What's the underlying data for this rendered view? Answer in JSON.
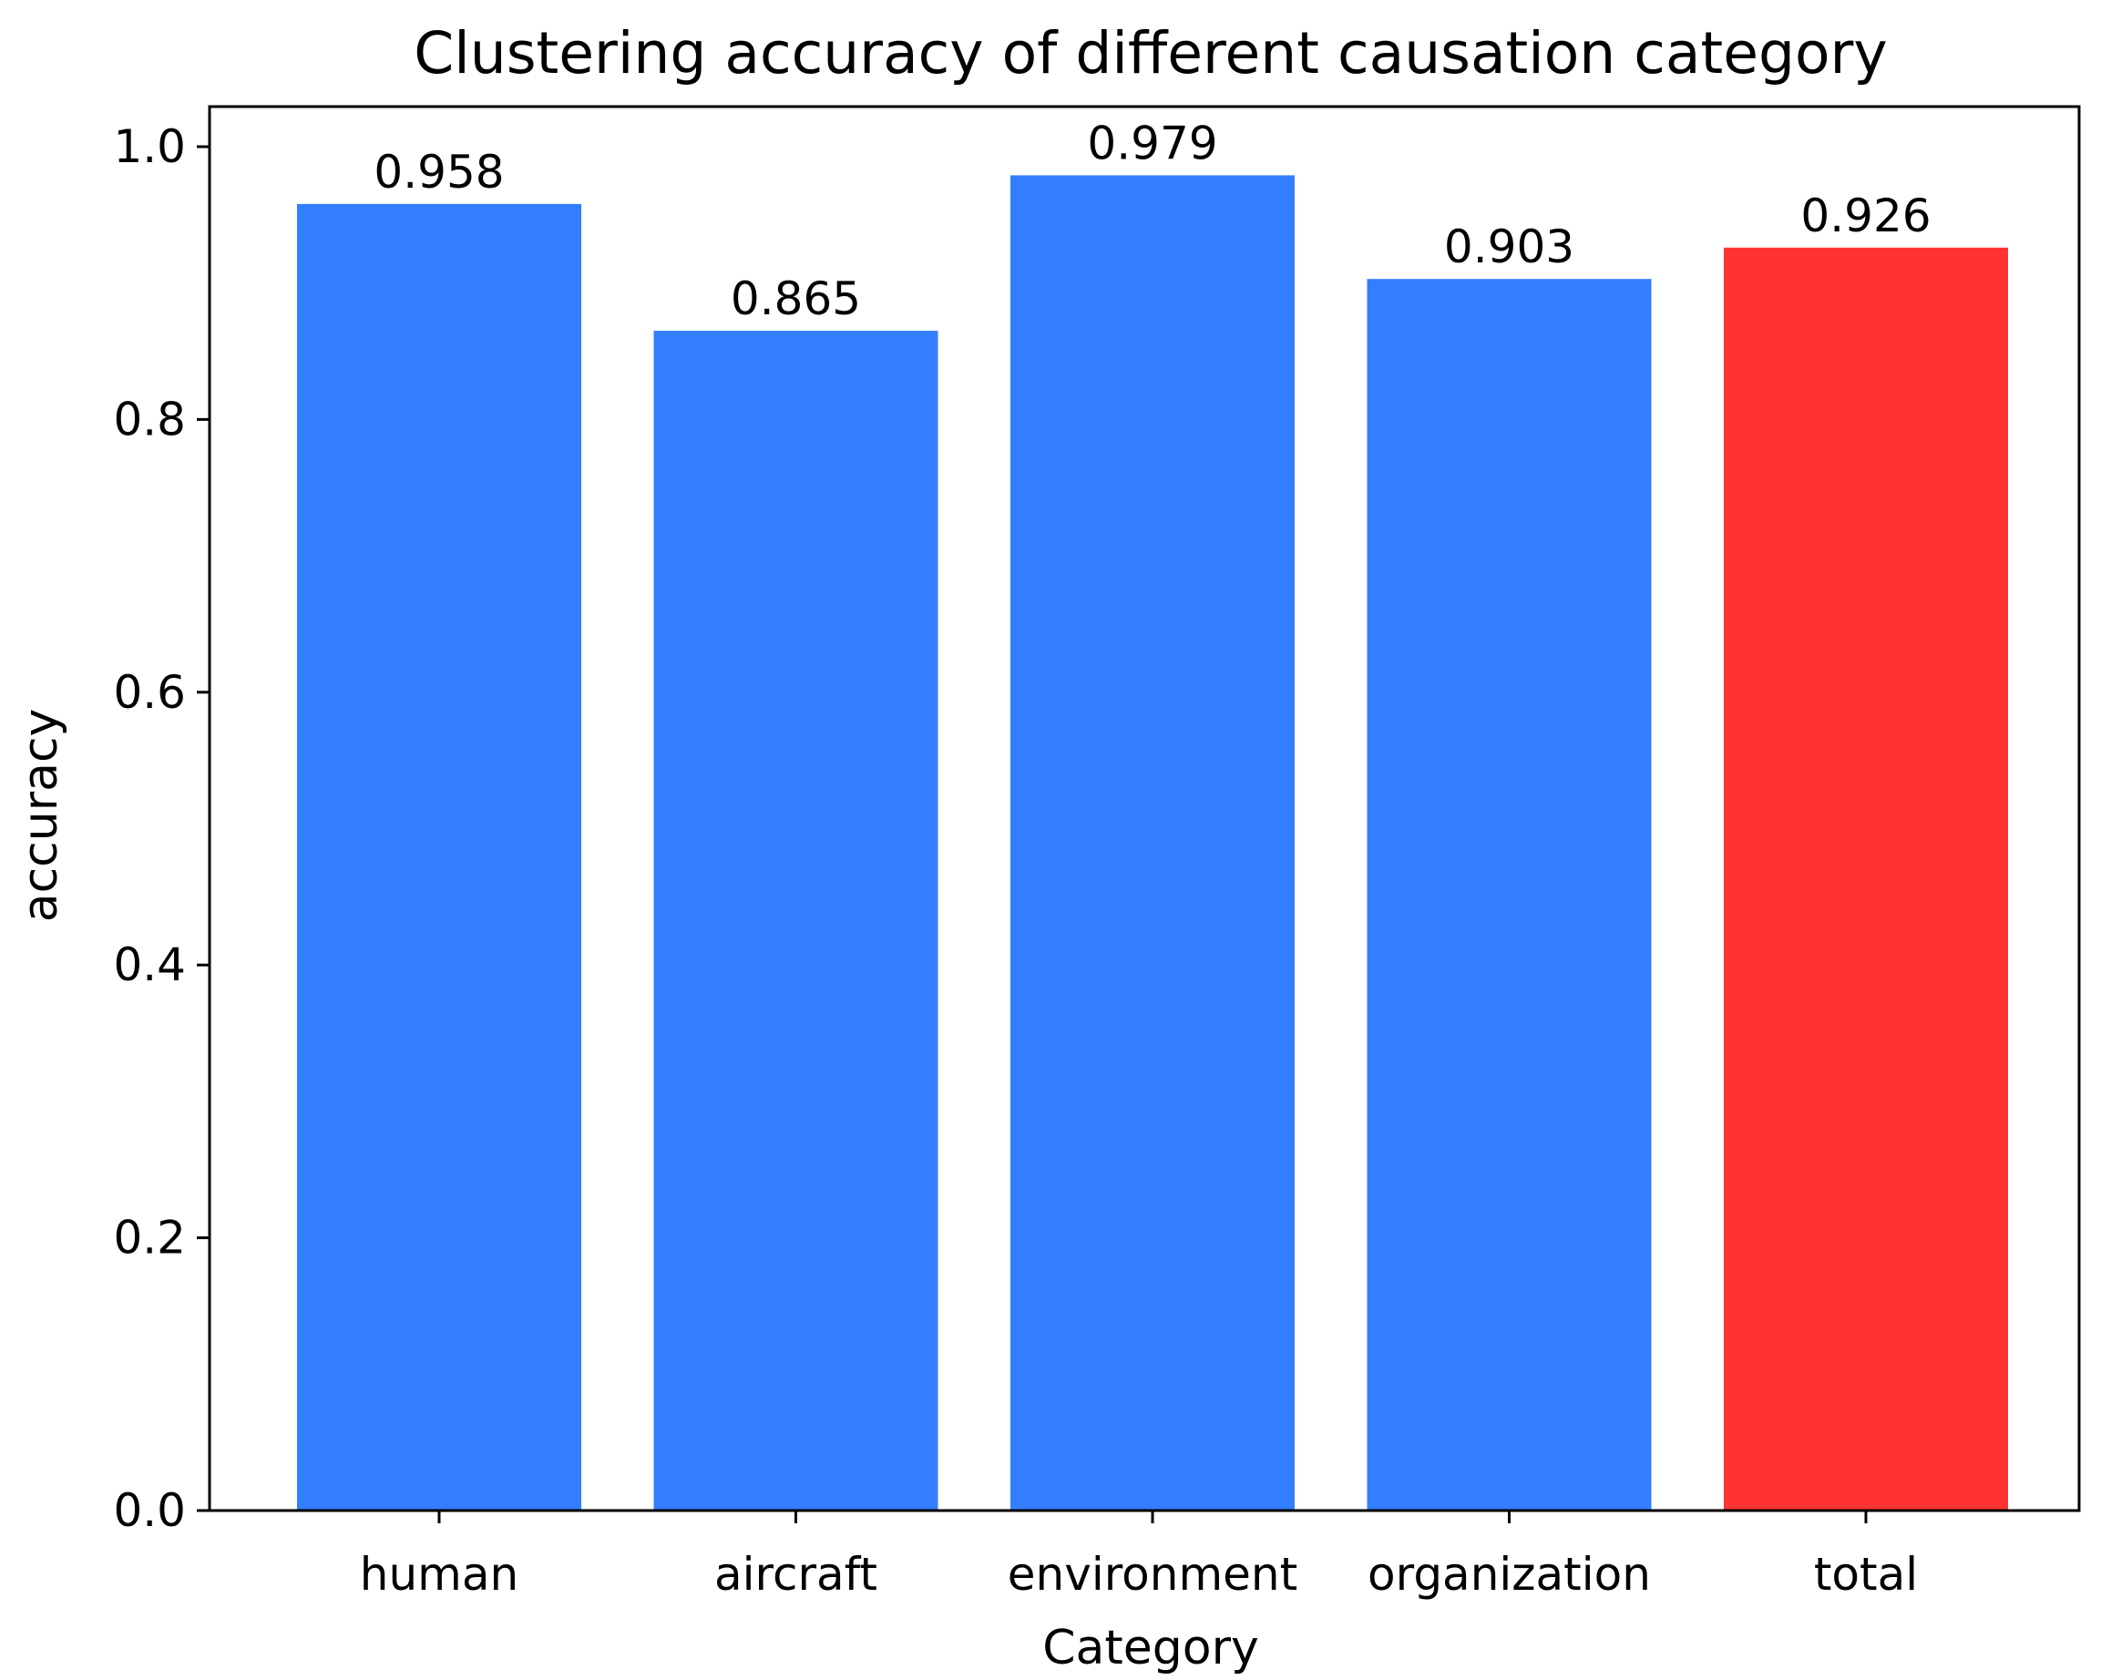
{
  "chart_data": {
    "type": "bar",
    "title": "Clustering accuracy of different causation category",
    "xlabel": "Category",
    "ylabel": "accuracy",
    "categories": [
      "human",
      "aircraft",
      "environment",
      "organization",
      "total"
    ],
    "values": [
      0.958,
      0.865,
      0.979,
      0.903,
      0.926
    ],
    "data_labels": [
      "0.958",
      "0.865",
      "0.979",
      "0.903",
      "0.926"
    ],
    "bar_colors": [
      "#337dff",
      "#337dff",
      "#337dff",
      "#337dff",
      "#ff3333"
    ],
    "yticks": [
      0.0,
      0.2,
      0.4,
      0.6,
      0.8,
      1.0
    ],
    "ytick_labels": [
      "0.0",
      "0.2",
      "0.4",
      "0.6",
      "0.8",
      "1.0"
    ],
    "ylim": [
      0,
      1.03
    ],
    "grid": false,
    "legend": "none"
  }
}
